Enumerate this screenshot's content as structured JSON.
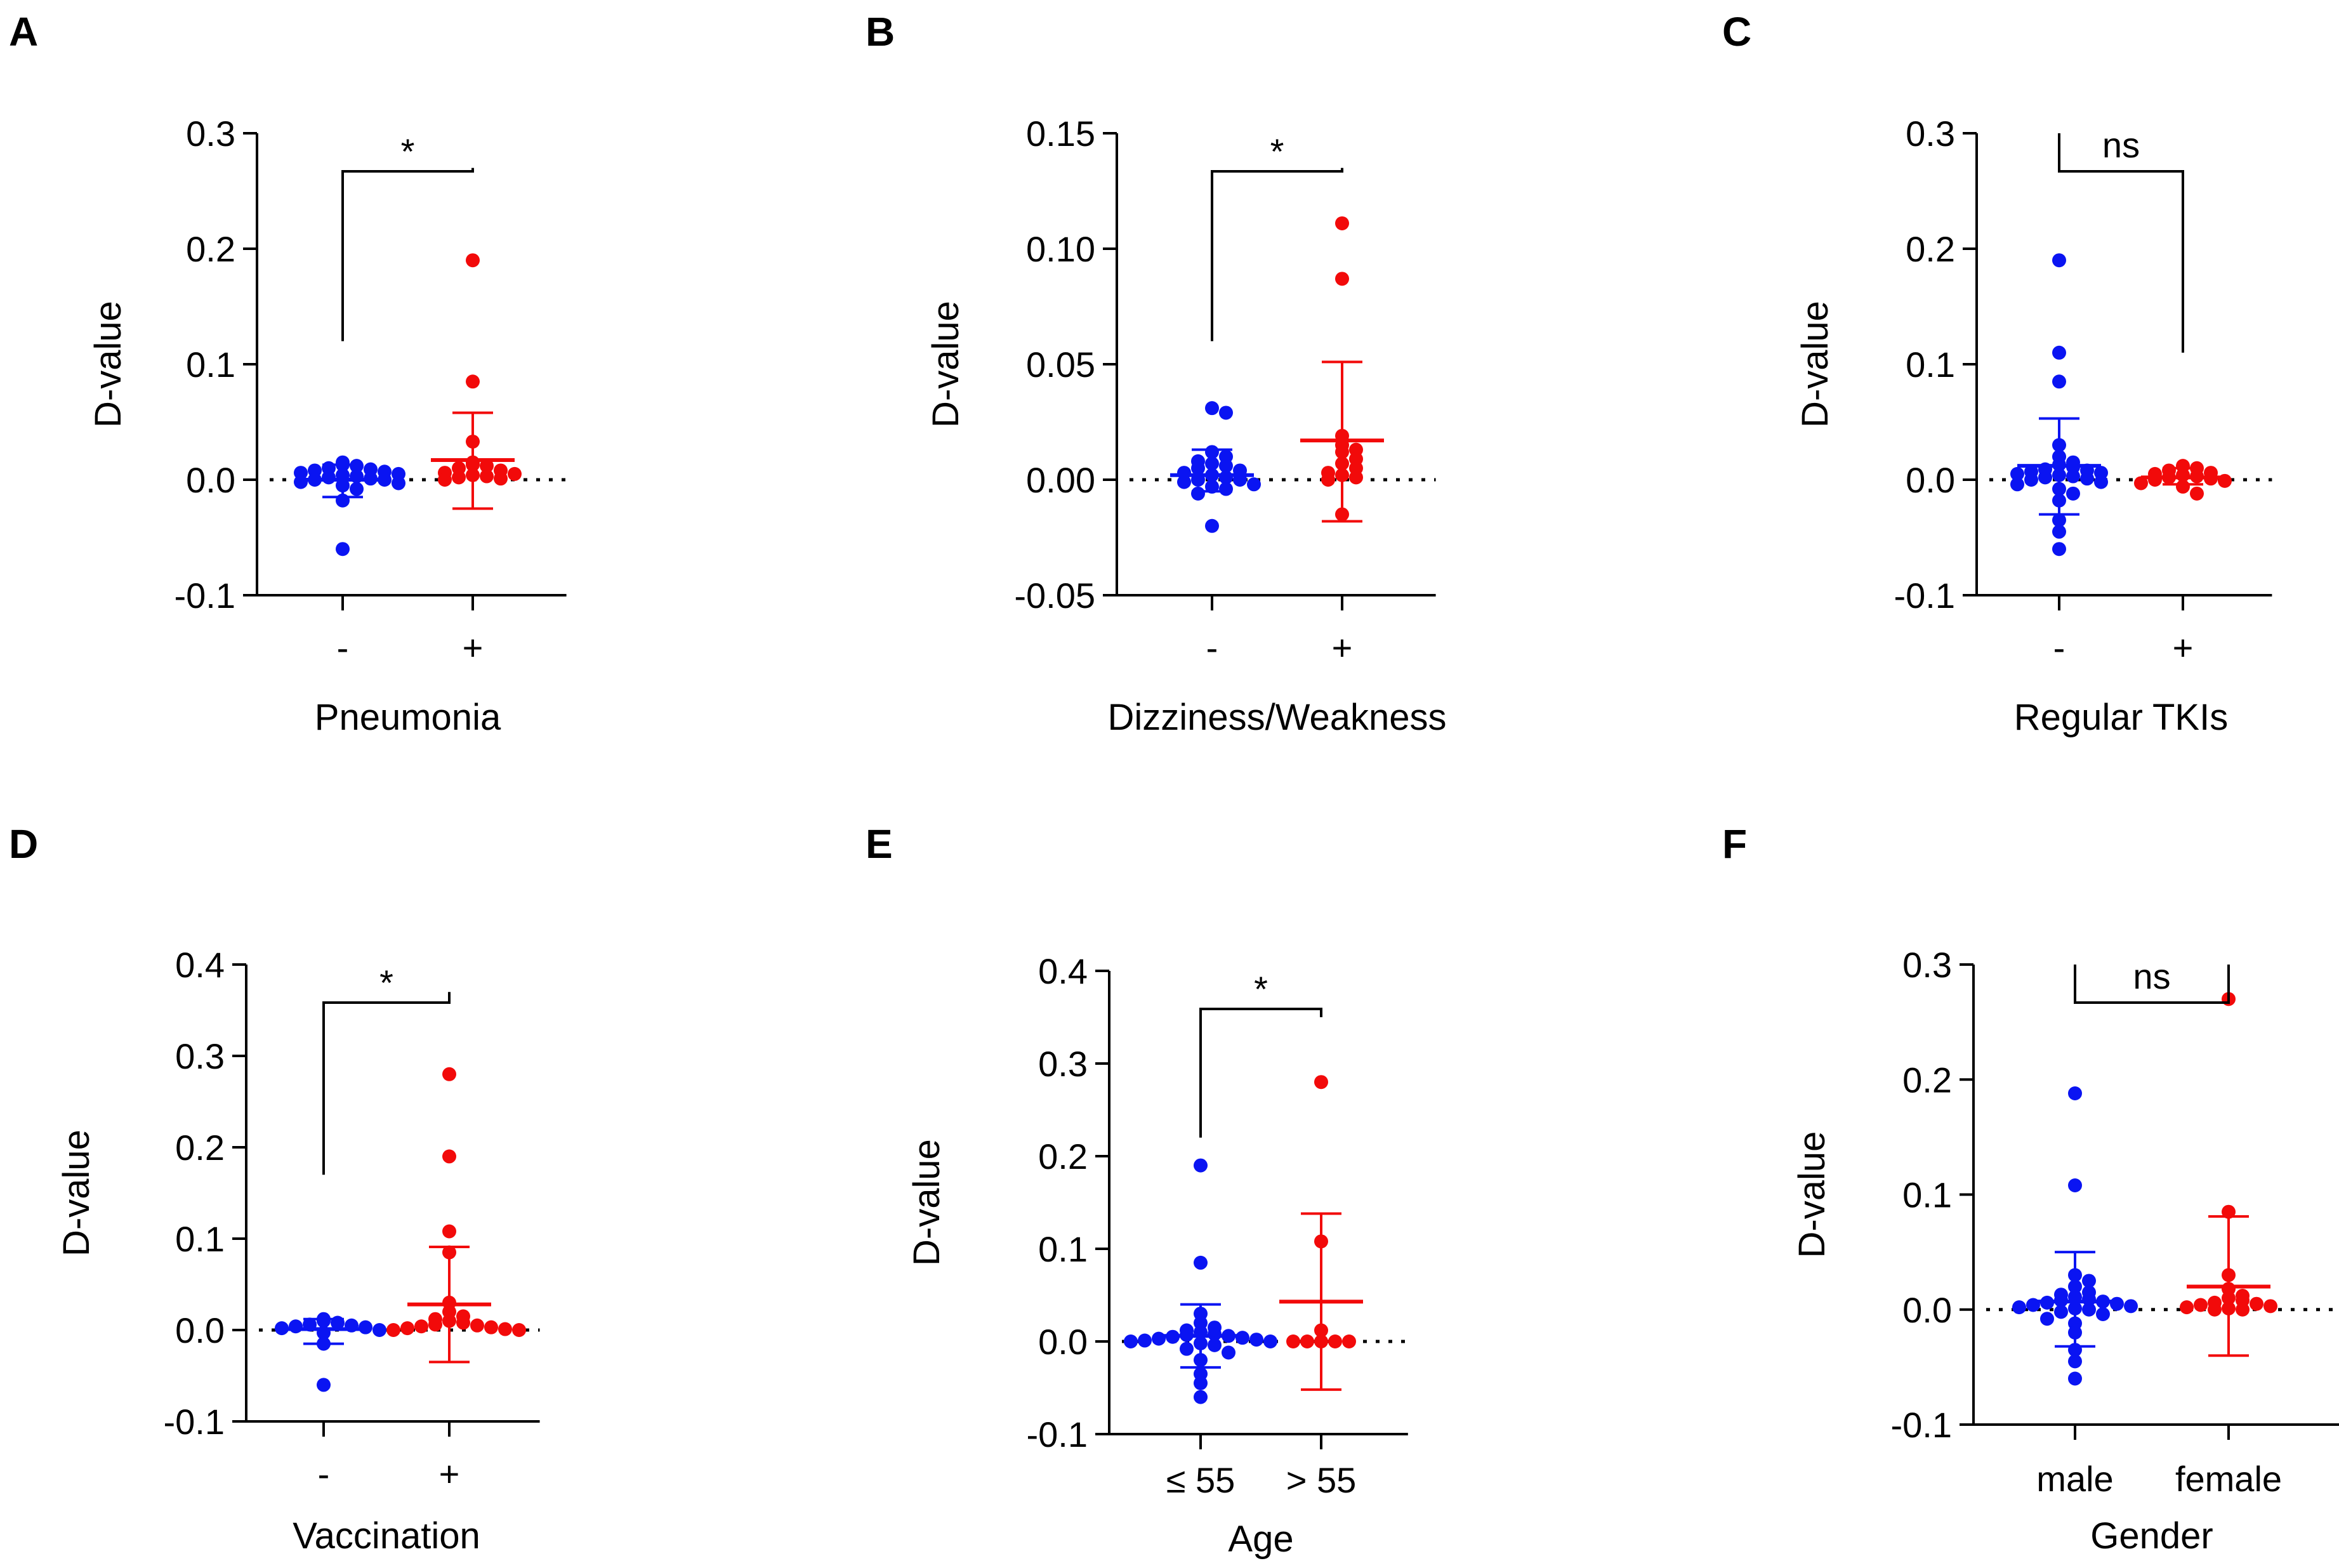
{
  "colors": {
    "group1": "#0a14f2",
    "group2": "#f20a0a",
    "axis": "#000000"
  },
  "y_axis_title": "D-value",
  "chart_data": [
    {
      "type": "scatter",
      "panel": "A",
      "xlabel": "Pneumonia",
      "ylabel": "D-value",
      "ylim": [
        -0.1,
        0.3
      ],
      "yticks": [
        -0.1,
        0.0,
        0.1,
        0.2,
        0.3
      ],
      "ytick_labels": [
        "-0.1",
        "0.0",
        "0.1",
        "0.2",
        "0.3"
      ],
      "categories": [
        "-",
        "+"
      ],
      "significance": "*",
      "bracket_from": [
        0.12,
        0.27
      ],
      "series": [
        {
          "name": "-",
          "mean": 0.0,
          "sd_low": -0.015,
          "sd_high": 0.013,
          "values": [
            0.015,
            0.013,
            0.012,
            0.01,
            0.009,
            0.008,
            0.007,
            0.006,
            0.005,
            0.004,
            0.003,
            0.002,
            0.001,
            0.0,
            0.0,
            -0.002,
            -0.003,
            -0.005,
            -0.008,
            -0.018,
            -0.06
          ]
        },
        {
          "name": "+",
          "mean": 0.017,
          "sd_low": -0.025,
          "sd_high": 0.058,
          "values": [
            0.19,
            0.085,
            0.033,
            0.015,
            0.013,
            0.012,
            0.01,
            0.008,
            0.006,
            0.005,
            0.004,
            0.003,
            0.002,
            0.001,
            0.0
          ]
        }
      ]
    },
    {
      "type": "scatter",
      "panel": "B",
      "xlabel": "Dizziness/Weakness",
      "ylabel": "D-value",
      "ylim": [
        -0.05,
        0.15
      ],
      "yticks": [
        -0.05,
        0.0,
        0.05,
        0.1,
        0.15
      ],
      "ytick_labels": [
        "-0.05",
        "0.00",
        "0.05",
        "0.10",
        "0.15"
      ],
      "categories": [
        "-",
        "+"
      ],
      "significance": "*",
      "bracket_from": [
        0.06,
        0.135
      ],
      "series": [
        {
          "name": "-",
          "mean": 0.002,
          "sd_low": -0.005,
          "sd_high": 0.013,
          "values": [
            0.031,
            0.029,
            0.012,
            0.01,
            0.008,
            0.007,
            0.006,
            0.005,
            0.004,
            0.003,
            0.002,
            0.001,
            0.0,
            0.0,
            -0.001,
            -0.002,
            -0.003,
            -0.004,
            -0.006,
            -0.02
          ]
        },
        {
          "name": "+",
          "mean": 0.017,
          "sd_low": -0.018,
          "sd_high": 0.051,
          "values": [
            0.111,
            0.087,
            0.019,
            0.015,
            0.013,
            0.012,
            0.009,
            0.007,
            0.005,
            0.003,
            0.002,
            0.001,
            0.0,
            -0.015
          ]
        }
      ]
    },
    {
      "type": "scatter",
      "panel": "C",
      "xlabel": "Regular TKIs",
      "ylabel": "D-value",
      "ylim": [
        -0.1,
        0.3
      ],
      "yticks": [
        -0.1,
        0.0,
        0.1,
        0.2,
        0.3
      ],
      "ytick_labels": [
        "-0.1",
        "0.0",
        "0.1",
        "0.2",
        "0.3"
      ],
      "categories": [
        "-",
        "+"
      ],
      "significance": "ns",
      "bracket_from": [
        0.3,
        0.11
      ],
      "series": [
        {
          "name": "-",
          "mean": 0.012,
          "sd_low": -0.03,
          "sd_high": 0.053,
          "values": [
            0.19,
            0.11,
            0.085,
            0.03,
            0.02,
            0.015,
            0.013,
            0.011,
            0.009,
            0.008,
            0.007,
            0.006,
            0.005,
            0.004,
            0.003,
            0.002,
            0.001,
            0.0,
            -0.002,
            -0.004,
            -0.008,
            -0.012,
            -0.018,
            -0.035,
            -0.045,
            -0.06
          ]
        },
        {
          "name": "+",
          "mean": 0.002,
          "sd_low": -0.004,
          "sd_high": 0.01,
          "values": [
            0.012,
            0.01,
            0.008,
            0.006,
            0.005,
            0.004,
            0.003,
            0.002,
            0.001,
            0.0,
            -0.001,
            -0.003,
            -0.006,
            -0.012
          ]
        }
      ]
    },
    {
      "type": "scatter",
      "panel": "D",
      "xlabel": "Vaccination",
      "ylabel": "D-value",
      "ylim": [
        -0.1,
        0.4
      ],
      "yticks": [
        -0.1,
        0.0,
        0.1,
        0.2,
        0.3,
        0.4
      ],
      "ytick_labels": [
        "-0.1",
        "0.0",
        "0.1",
        "0.2",
        "0.3",
        "0.4"
      ],
      "categories": [
        "-",
        "+"
      ],
      "significance": "*",
      "bracket_from": [
        0.17,
        0.37
      ],
      "series": [
        {
          "name": "-",
          "mean": 0.001,
          "sd_low": -0.015,
          "sd_high": 0.012,
          "values": [
            0.012,
            0.01,
            0.008,
            0.006,
            0.005,
            0.004,
            0.003,
            0.002,
            0.0,
            -0.003,
            -0.015,
            -0.06
          ]
        },
        {
          "name": "+",
          "mean": 0.028,
          "sd_low": -0.035,
          "sd_high": 0.091,
          "values": [
            0.28,
            0.19,
            0.108,
            0.085,
            0.03,
            0.02,
            0.015,
            0.012,
            0.01,
            0.008,
            0.006,
            0.005,
            0.004,
            0.003,
            0.002,
            0.001,
            0.0,
            0.0
          ]
        }
      ]
    },
    {
      "type": "scatter",
      "panel": "E",
      "xlabel": "Age",
      "ylabel": "D-value",
      "ylim": [
        -0.1,
        0.4
      ],
      "yticks": [
        -0.1,
        0.0,
        0.1,
        0.2,
        0.3,
        0.4
      ],
      "ytick_labels": [
        "-0.1",
        "0.0",
        "0.1",
        "0.2",
        "0.3",
        "0.4"
      ],
      "categories": [
        "≤ 55",
        "> 55"
      ],
      "significance": "*",
      "bracket_from": [
        0.22,
        0.35
      ],
      "series": [
        {
          "name": "≤ 55",
          "mean": 0.006,
          "sd_low": -0.028,
          "sd_high": 0.04,
          "values": [
            0.19,
            0.085,
            0.03,
            0.02,
            0.015,
            0.012,
            0.01,
            0.008,
            0.007,
            0.006,
            0.005,
            0.004,
            0.003,
            0.002,
            0.001,
            0.0,
            0.0,
            -0.002,
            -0.004,
            -0.008,
            -0.012,
            -0.02,
            -0.035,
            -0.045,
            -0.06
          ]
        },
        {
          "name": "> 55",
          "mean": 0.043,
          "sd_low": -0.052,
          "sd_high": 0.138,
          "values": [
            0.28,
            0.108,
            0.012,
            0.0,
            0.0,
            0.0,
            0.0,
            0.0
          ]
        }
      ]
    },
    {
      "type": "scatter",
      "panel": "F",
      "xlabel": "Gender",
      "ylabel": "D-value",
      "ylim": [
        -0.1,
        0.3
      ],
      "yticks": [
        -0.1,
        0.0,
        0.1,
        0.2,
        0.3
      ],
      "ytick_labels": [
        "-0.1",
        "0.0",
        "0.1",
        "0.2",
        "0.3"
      ],
      "categories": [
        "male",
        "female"
      ],
      "significance": "ns",
      "bracket_from": [
        0.3,
        0.3
      ],
      "series": [
        {
          "name": "male",
          "mean": 0.007,
          "sd_low": -0.032,
          "sd_high": 0.05,
          "values": [
            0.188,
            0.108,
            0.03,
            0.025,
            0.02,
            0.015,
            0.013,
            0.011,
            0.009,
            0.008,
            0.007,
            0.006,
            0.005,
            0.004,
            0.003,
            0.002,
            0.001,
            0.0,
            -0.002,
            -0.004,
            -0.008,
            -0.012,
            -0.02,
            -0.035,
            -0.045,
            -0.06
          ]
        },
        {
          "name": "female",
          "mean": 0.02,
          "sd_low": -0.04,
          "sd_high": 0.081,
          "values": [
            0.27,
            0.085,
            0.03,
            0.018,
            0.012,
            0.01,
            0.008,
            0.006,
            0.005,
            0.004,
            0.003,
            0.002,
            0.001,
            0.0,
            0.0
          ]
        }
      ]
    }
  ]
}
